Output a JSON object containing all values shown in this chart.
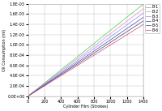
{
  "title": "",
  "xlabel": "Cylinder Film (Strokes)",
  "ylabel": "Oil Consumption (ml)",
  "xlim": [
    0,
    1400000
  ],
  "ylim": [
    0.0,
    0.0018
  ],
  "xticks": [
    0,
    200000,
    400000,
    600000,
    800000,
    1000000,
    1200000,
    1400000
  ],
  "xticklabels": [
    "0",
    "200",
    "400",
    "600",
    "800",
    "1000",
    "1200",
    "1400"
  ],
  "ytick_values": [
    0.0,
    0.0002,
    0.0004,
    0.0006,
    0.0008,
    0.001,
    0.0012,
    0.0014,
    0.0016,
    0.0018
  ],
  "ytick_labels": [
    "0.0E-00",
    "2.0E-04",
    "4.0E-04",
    "6.0E-04",
    "8.0E-04",
    "1.0E-03",
    "1.2E-03",
    "1.4E-03",
    "1.6E-03",
    "1.8E-03"
  ],
  "series": [
    {
      "label": "B-1",
      "color": "#44cc44",
      "slope": 1.285e-09
    },
    {
      "label": "B-2",
      "color": "#dd88cc",
      "slope": 1.22e-09
    },
    {
      "label": "B-3",
      "color": "#8888ee",
      "slope": 1.16e-09
    },
    {
      "label": "B-4",
      "color": "#4444bb",
      "slope": 1.1e-09
    },
    {
      "label": "B-5",
      "color": "#444444",
      "slope": 1.05e-09
    },
    {
      "label": "B-6",
      "color": "#cc4488",
      "slope": 1e-09
    }
  ],
  "legend_fontsize": 3.5,
  "axis_label_fontsize": 3.5,
  "tick_fontsize": 3.5,
  "background_color": "#ffffff",
  "grid_color": "#bbbbbb",
  "linewidth": 0.5
}
